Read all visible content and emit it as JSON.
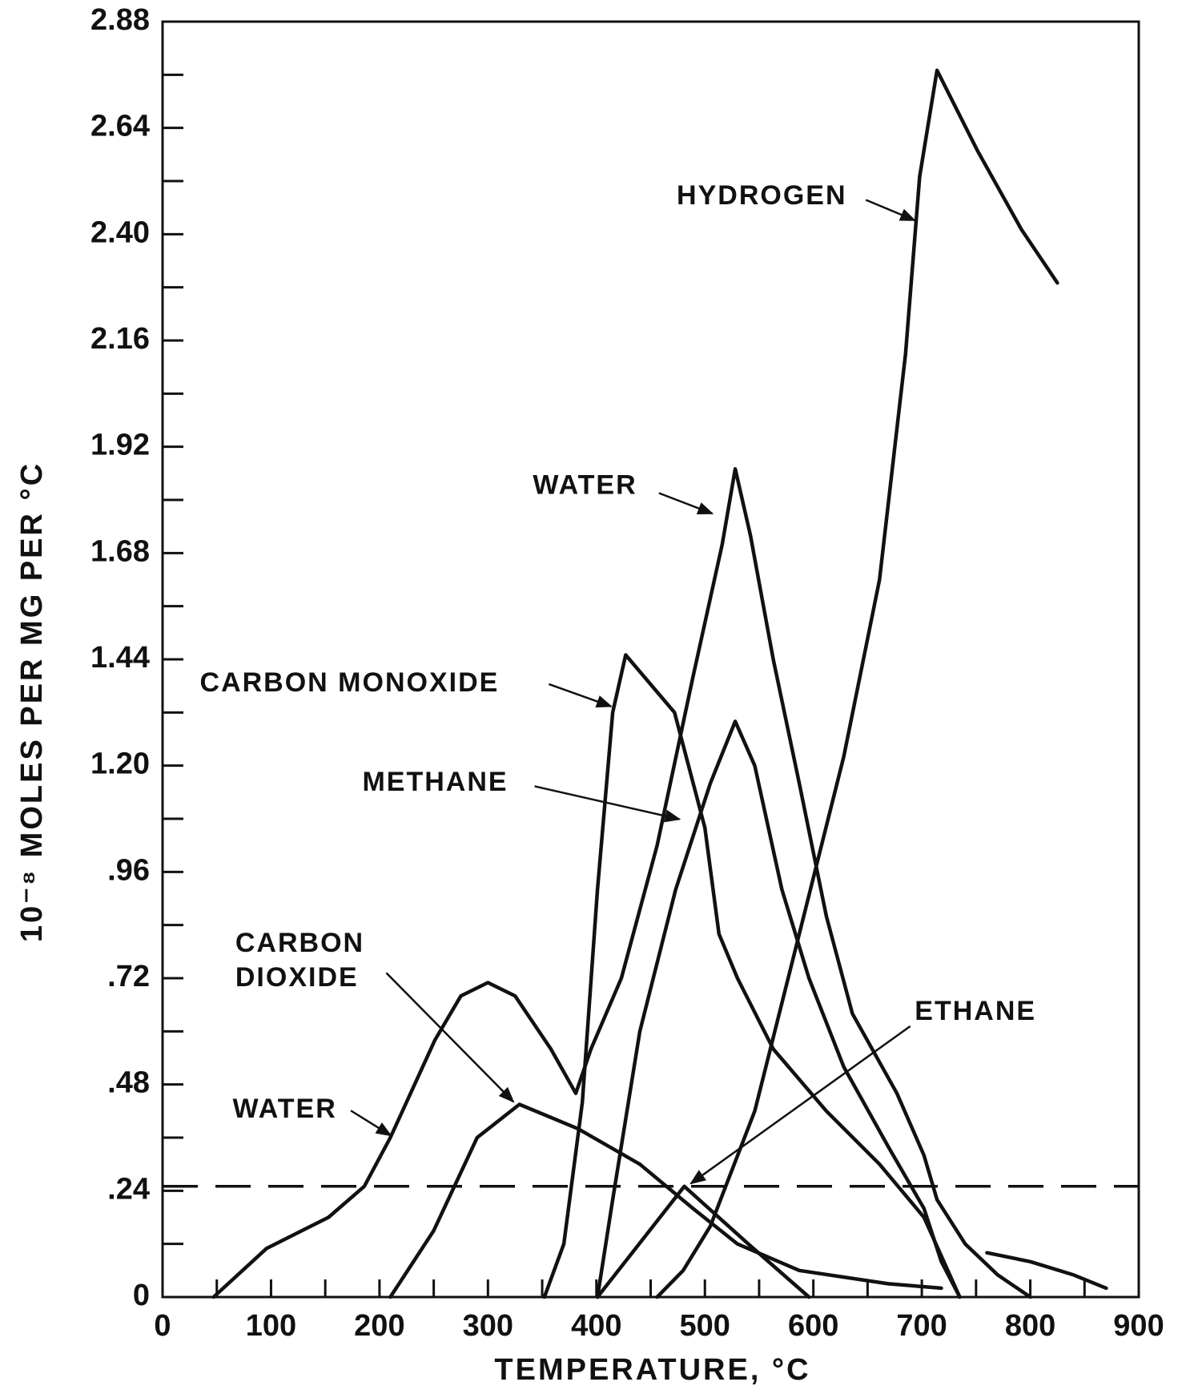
{
  "chart_data": {
    "type": "line",
    "x_label": "TEMPERATURE, °C",
    "y_label": "10⁻⁸ MOLES PER MG PER °C",
    "xlim": [
      0,
      900
    ],
    "xticks": [
      0,
      100,
      200,
      300,
      400,
      500,
      600,
      700,
      800,
      900
    ],
    "ylim": [
      0,
      2.88
    ],
    "yticks": [
      0,
      {
        "value": 0.24,
        "label": ".24"
      },
      {
        "value": 0.48,
        "label": ".48"
      },
      {
        "value": 0.72,
        "label": ".72"
      },
      {
        "value": 0.96,
        "label": ".96"
      },
      {
        "value": 1.2,
        "label": "1.20"
      },
      1.44,
      1.68,
      1.92,
      2.16,
      {
        "value": 2.4,
        "label": "2.40"
      },
      2.64,
      2.88
    ],
    "minor_ticks": true,
    "hline": 0.25,
    "series": [
      {
        "name": "HYDROGEN",
        "color": "#111111",
        "x": [
          456,
          480,
          505,
          546,
          587,
          628,
          661,
          685,
          698,
          714,
          751,
          792,
          825
        ],
        "values": [
          0,
          0.06,
          0.16,
          0.42,
          0.82,
          1.22,
          1.62,
          2.13,
          2.53,
          2.77,
          2.59,
          2.41,
          2.29
        ]
      },
      {
        "name": "WATER",
        "color": "#111111",
        "x": [
          47,
          96,
          153,
          186,
          210,
          251,
          275,
          300,
          325,
          358,
          381,
          395,
          423,
          456,
          489,
          516,
          528,
          542,
          563,
          587,
          612,
          636,
          677,
          702,
          714,
          740,
          770,
          800
        ],
        "values": [
          0,
          0.11,
          0.18,
          0.25,
          0.36,
          0.58,
          0.68,
          0.71,
          0.68,
          0.56,
          0.46,
          0.56,
          0.72,
          1.02,
          1.4,
          1.7,
          1.87,
          1.72,
          1.44,
          1.16,
          0.86,
          0.64,
          0.46,
          0.32,
          0.22,
          0.12,
          0.05,
          0
        ]
      },
      {
        "name": "CARBON MONOXIDE",
        "color": "#111111",
        "x": [
          352,
          370,
          387,
          401,
          415,
          427,
          472,
          500,
          513,
          530,
          563,
          612,
          661,
          702,
          735
        ],
        "values": [
          0,
          0.12,
          0.44,
          0.92,
          1.32,
          1.45,
          1.32,
          1.06,
          0.82,
          0.72,
          0.56,
          0.42,
          0.3,
          0.18,
          0
        ]
      },
      {
        "name": "METHANE",
        "color": "#111111",
        "x": [
          401,
          415,
          440,
          473,
          505,
          528,
          546,
          571,
          596,
          628,
          669,
          702,
          718,
          735
        ],
        "values": [
          0,
          0.22,
          0.6,
          0.92,
          1.16,
          1.3,
          1.2,
          0.92,
          0.72,
          0.52,
          0.34,
          0.2,
          0.08,
          0
        ]
      },
      {
        "name": "CARBON DIOXIDE",
        "color": "#111111",
        "x": [
          210,
          250,
          290,
          329,
          383,
          440,
          489,
          530,
          587,
          669,
          718,
          740,
          760,
          800,
          840,
          870
        ],
        "values": [
          0,
          0.15,
          0.36,
          0.435,
          0.38,
          0.3,
          0.2,
          0.12,
          0.06,
          0.03,
          0.02,
          null,
          0.1,
          0.08,
          0.05,
          0.02
        ]
      },
      {
        "name": "ETHANE",
        "color": "#111111",
        "x": [
          401,
          481,
          540,
          596
        ],
        "values": [
          0,
          0.25,
          0.12,
          0
        ]
      }
    ]
  }
}
